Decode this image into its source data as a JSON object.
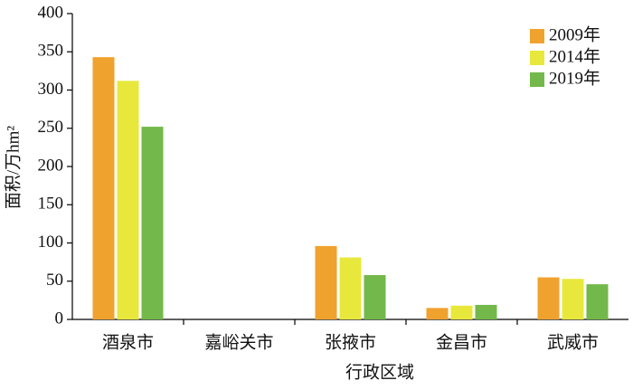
{
  "chart_data": {
    "type": "bar",
    "x_label": "行政区域",
    "y_label": "面积/万hm²",
    "categories": [
      "酒泉市",
      "嘉峪关市",
      "张掖市",
      "金昌市",
      "武威市"
    ],
    "series": [
      {
        "name": "2009年",
        "color": "#f0a22e",
        "values": [
          343,
          0,
          96,
          15,
          55
        ]
      },
      {
        "name": "2014年",
        "color": "#e8e83c",
        "values": [
          312,
          0,
          81,
          18,
          53
        ]
      },
      {
        "name": "2019年",
        "color": "#72b84a",
        "values": [
          252,
          0,
          58,
          19,
          46
        ]
      }
    ],
    "ylim": [
      0,
      400
    ],
    "yticks": [
      0,
      50,
      100,
      150,
      200,
      250,
      300,
      350,
      400
    ],
    "legend": "upper right"
  }
}
